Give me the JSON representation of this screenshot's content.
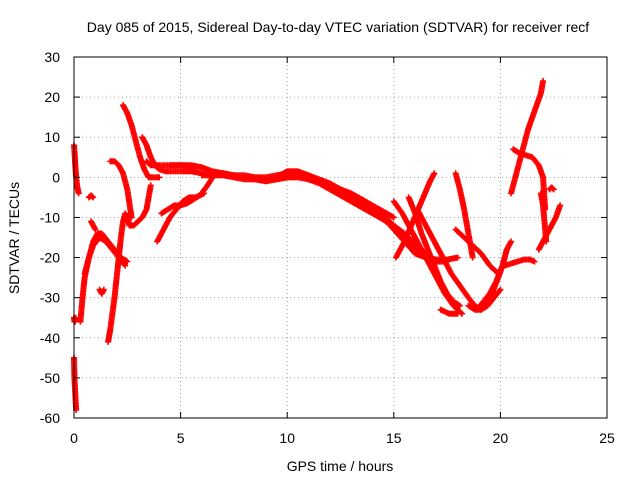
{
  "chart_data": {
    "type": "scatter",
    "title": "Day 085 of 2015, Sidereal Day-to-day VTEC variation (SDTVAR) for receiver recf",
    "xlabel": "GPS time / hours",
    "ylabel": "SDTVAR / TECUs",
    "xlim": [
      0,
      25
    ],
    "ylim": [
      -60,
      30
    ],
    "xticks": [
      0,
      5,
      10,
      15,
      20,
      25
    ],
    "yticks": [
      -60,
      -50,
      -40,
      -30,
      -20,
      -10,
      0,
      10,
      20,
      30
    ],
    "xtick_labels": [
      "0",
      "5",
      "10",
      "15",
      "20",
      "25"
    ],
    "ytick_labels": [
      "-60",
      "-50",
      "-40",
      "-30",
      "-20",
      "-10",
      "0",
      "10",
      "20",
      "30"
    ],
    "grid": true,
    "marker": "+",
    "marker_color": "#ff0000",
    "series": [
      {
        "name": "s1",
        "x": [
          0.0,
          0.03,
          0.06,
          0.1,
          0.14,
          0.18,
          0.22
        ],
        "y": [
          8,
          6,
          3,
          0,
          -2,
          -3,
          -4
        ]
      },
      {
        "name": "s2",
        "x": [
          0.0,
          0.02,
          0.05,
          0.08
        ],
        "y": [
          -35,
          -36,
          -36,
          -35
        ]
      },
      {
        "name": "s3",
        "x": [
          0.0,
          0.02,
          0.05,
          0.08,
          0.1
        ],
        "y": [
          -45,
          -50,
          -53,
          -56,
          -58
        ]
      },
      {
        "name": "s4",
        "x": [
          0.3,
          0.4,
          0.5,
          0.7,
          0.9,
          1.1,
          1.3,
          1.6,
          1.9,
          2.2,
          2.5
        ],
        "y": [
          -36,
          -30,
          -25,
          -20,
          -16,
          -14,
          -14,
          -16,
          -18,
          -20,
          -21
        ]
      },
      {
        "name": "s5",
        "x": [
          0.7,
          0.8,
          0.9
        ],
        "y": [
          -5,
          -4.5,
          -5
        ]
      },
      {
        "name": "s6",
        "x": [
          1.2,
          1.3,
          1.4
        ],
        "y": [
          -28,
          -29,
          -28
        ]
      },
      {
        "name": "s7",
        "x": [
          0.5,
          0.7,
          0.9,
          1.2,
          1.5,
          1.8,
          2.1,
          2.4
        ],
        "y": [
          -24,
          -20,
          -17,
          -15,
          -16,
          -18,
          -20,
          -22
        ]
      },
      {
        "name": "s8",
        "x": [
          0.8,
          0.9,
          1.0
        ],
        "y": [
          -11,
          -12,
          -13
        ]
      },
      {
        "name": "s9",
        "x": [
          1.6,
          1.7,
          1.8,
          1.9,
          2.0,
          2.1,
          2.2,
          2.3,
          2.4,
          2.5,
          2.6,
          2.7
        ],
        "y": [
          -41,
          -38,
          -34,
          -30,
          -25,
          -20,
          -15,
          -11,
          -9,
          -10,
          -12,
          -12
        ]
      },
      {
        "name": "s10",
        "x": [
          1.7,
          1.9,
          2.1,
          2.3,
          2.5,
          2.7
        ],
        "y": [
          4,
          4,
          3,
          1,
          -3,
          -10
        ]
      },
      {
        "name": "s11",
        "x": [
          2.3,
          2.5,
          2.7,
          2.9,
          3.1,
          3.3,
          3.5,
          3.7,
          4.0
        ],
        "y": [
          18,
          16,
          13,
          9,
          5,
          2,
          0,
          0,
          0
        ]
      },
      {
        "name": "s12",
        "x": [
          2.6,
          2.8,
          3.0,
          3.2,
          3.4,
          3.6
        ],
        "y": [
          -12,
          -12,
          -11,
          -10,
          -8,
          -2
        ]
      },
      {
        "name": "s13",
        "x": [
          3.2,
          3.4,
          3.6,
          3.8,
          4.0,
          4.3,
          4.6,
          5.0,
          5.5,
          6.0,
          6.5
        ],
        "y": [
          10,
          8,
          5,
          3,
          2,
          1.5,
          1.5,
          1.5,
          1.5,
          1,
          0.5
        ]
      },
      {
        "name": "s14",
        "x": [
          3.4,
          3.6,
          3.8,
          4.0,
          4.4,
          4.8,
          5.2,
          5.6
        ],
        "y": [
          4,
          3,
          3,
          3,
          3,
          3,
          3,
          2.5
        ]
      },
      {
        "name": "s15",
        "x": [
          3.9,
          4.2,
          4.5,
          4.8,
          5.1,
          5.4,
          5.7,
          6.1
        ],
        "y": [
          -16,
          -13,
          -10,
          -8,
          -6,
          -5,
          -5,
          -4
        ]
      },
      {
        "name": "s16",
        "x": [
          4.1,
          4.4,
          4.7,
          5.0,
          5.3,
          5.6,
          5.9,
          6.2,
          6.5
        ],
        "y": [
          -9,
          -8,
          -7,
          -7,
          -6.5,
          -5.5,
          -4.5,
          -2.5,
          0
        ]
      },
      {
        "name": "s17",
        "x": [
          4.5,
          5.0,
          5.5,
          6.0,
          6.5,
          7.0,
          7.5,
          8.0,
          8.5,
          9.0,
          9.5,
          10.0,
          10.5,
          11.0,
          11.5,
          12.0,
          12.5,
          13.0,
          13.5,
          14.0
        ],
        "y": [
          3,
          3,
          3,
          2.5,
          1.5,
          1,
          0.5,
          0.5,
          0,
          0,
          0.5,
          1,
          1,
          0.5,
          -0.5,
          -1.5,
          -3,
          -4.5,
          -6,
          -7.5
        ]
      },
      {
        "name": "s18",
        "x": [
          6.0,
          6.5,
          7.0,
          7.5,
          8.0,
          8.5,
          9.0,
          9.5,
          10.0,
          10.5,
          11.0,
          11.5,
          12.0,
          12.5,
          13.0,
          13.5,
          14.0,
          14.5,
          15.0,
          15.5,
          16.0
        ],
        "y": [
          0.5,
          0.5,
          0.5,
          0,
          -0.5,
          -0.5,
          -1,
          -0.5,
          0,
          0,
          -0.5,
          -1,
          -2,
          -3,
          -4,
          -5.5,
          -7.5,
          -9.5,
          -12,
          -14.5,
          -17
        ]
      },
      {
        "name": "s19",
        "x": [
          7.0,
          7.5,
          8.0,
          8.5,
          9.0,
          9.5,
          10.0,
          10.5,
          11.0,
          11.5,
          12.0,
          12.5,
          13.0,
          13.5,
          14.0,
          14.5,
          15.0
        ],
        "y": [
          1,
          0.5,
          0,
          -0.5,
          -0.5,
          -0.5,
          0,
          0.5,
          0,
          -1,
          -2,
          -3,
          -4.5,
          -5.5,
          -7,
          -8.5,
          -10
        ]
      },
      {
        "name": "s20",
        "x": [
          9.5,
          10.0,
          10.5,
          11.0,
          11.5,
          12.0,
          12.5,
          13.0,
          13.5,
          14.0,
          14.5,
          15.0,
          15.5,
          16.0,
          16.5,
          17.0
        ],
        "y": [
          0,
          1.5,
          1.5,
          0.5,
          -1,
          -2.5,
          -4,
          -5.5,
          -7,
          -8.5,
          -10.5,
          -12.5,
          -15,
          -17.5,
          -20,
          -21
        ]
      },
      {
        "name": "s21",
        "x": [
          11.0,
          11.5,
          12.0,
          12.5,
          13.0,
          13.5,
          14.0,
          14.5,
          15.0,
          15.5,
          16.0,
          16.5,
          17.0,
          17.5
        ],
        "y": [
          -0.5,
          -1.5,
          -3,
          -4.5,
          -6,
          -7.5,
          -9,
          -10.5,
          -12,
          -14,
          -16.5,
          -19,
          -21,
          -21
        ]
      },
      {
        "name": "s22",
        "x": [
          13.5,
          14.0,
          14.5,
          15.0,
          15.5,
          16.0,
          16.5,
          17.0,
          17.5,
          18.0
        ],
        "y": [
          -7,
          -8,
          -10,
          -13,
          -16,
          -19,
          -20,
          -20.5,
          -20.5,
          -20
        ]
      },
      {
        "name": "s23",
        "x": [
          15.0,
          15.4,
          15.8,
          16.2,
          16.6,
          17.0,
          17.4,
          17.8,
          18.2
        ],
        "y": [
          -6,
          -9,
          -13,
          -17,
          -21,
          -25,
          -29,
          -32,
          -34
        ]
      },
      {
        "name": "s24",
        "x": [
          15.7,
          16.0,
          16.3,
          16.6,
          16.9,
          17.2,
          17.5,
          17.8,
          18.1
        ],
        "y": [
          -5,
          -9,
          -14,
          -18,
          -22,
          -26,
          -29,
          -31,
          -32
        ]
      },
      {
        "name": "s25",
        "x": [
          15.1,
          15.5,
          15.9,
          16.3,
          16.7,
          16.9
        ],
        "y": [
          -20,
          -16,
          -11,
          -6,
          -1,
          1
        ]
      },
      {
        "name": "s26",
        "x": [
          16.1,
          16.4,
          16.7,
          17.0,
          17.3,
          17.7,
          18.1,
          18.5,
          18.8,
          19.1
        ],
        "y": [
          -8,
          -11,
          -14,
          -17,
          -20,
          -24,
          -27,
          -30,
          -32,
          -33
        ]
      },
      {
        "name": "s27",
        "x": [
          17.2,
          17.4,
          17.6,
          17.8,
          18.0
        ],
        "y": [
          -33,
          -33.5,
          -34,
          -34,
          -34
        ]
      },
      {
        "name": "s28",
        "x": [
          17.9,
          18.1,
          18.3,
          18.5,
          18.7
        ],
        "y": [
          1,
          -3,
          -8,
          -14,
          -20
        ]
      },
      {
        "name": "s29",
        "x": [
          17.9,
          18.3,
          18.7,
          19.1,
          19.5,
          19.9
        ],
        "y": [
          -13,
          -15,
          -17,
          -19,
          -22,
          -24
        ]
      },
      {
        "name": "s30",
        "x": [
          18.5,
          18.8,
          19.1,
          19.4,
          19.7,
          20.0
        ],
        "y": [
          -32,
          -33,
          -33,
          -32,
          -30,
          -28
        ]
      },
      {
        "name": "s31",
        "x": [
          18.9,
          19.2,
          19.5,
          19.8,
          20.1,
          20.3
        ],
        "y": [
          -33,
          -31,
          -29,
          -26,
          -22,
          -18
        ]
      },
      {
        "name": "s32",
        "x": [
          19.3,
          19.6,
          19.9,
          20.1,
          20.3,
          20.5
        ],
        "y": [
          -32,
          -29,
          -25,
          -22,
          -18,
          -16
        ]
      },
      {
        "name": "s33",
        "x": [
          20.5,
          20.7,
          20.9,
          21.1,
          21.3,
          21.5,
          21.7,
          21.9,
          22.0
        ],
        "y": [
          -4,
          0,
          4,
          8,
          12,
          15,
          18,
          21,
          24
        ]
      },
      {
        "name": "s34",
        "x": [
          20.6,
          20.9,
          21.2,
          21.5,
          21.8,
          22.0,
          22.1
        ],
        "y": [
          7,
          6,
          5.5,
          5,
          3,
          0,
          -8
        ]
      },
      {
        "name": "s35",
        "x": [
          21.9,
          22.0,
          22.05,
          22.1,
          22.15
        ],
        "y": [
          -4,
          -7,
          -10,
          -13,
          -16
        ]
      },
      {
        "name": "s36",
        "x": [
          20.2,
          20.5,
          20.8,
          21.1,
          21.4,
          21.6
        ],
        "y": [
          -22,
          -21.5,
          -21,
          -20.5,
          -20.5,
          -21
        ]
      },
      {
        "name": "s37",
        "x": [
          21.8,
          22.0,
          22.2,
          22.4,
          22.6,
          22.8
        ],
        "y": [
          -18,
          -16,
          -14,
          -12,
          -10,
          -7
        ]
      },
      {
        "name": "s38",
        "x": [
          22.3,
          22.4,
          22.5
        ],
        "y": [
          -3,
          -2.5,
          -3
        ]
      }
    ]
  }
}
